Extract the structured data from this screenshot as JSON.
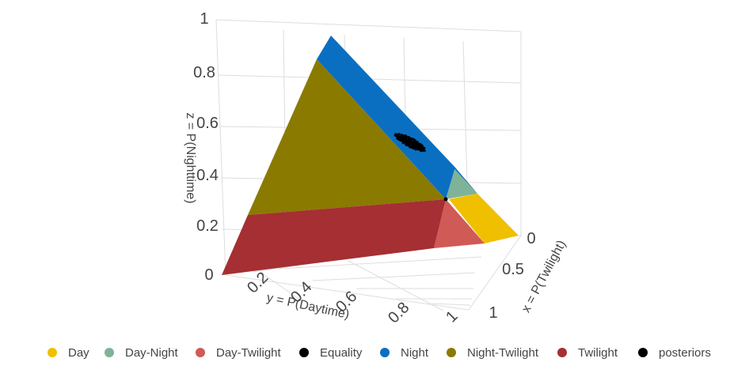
{
  "chart_data": {
    "type": "scatter",
    "projection": "3d-ternary-simplex",
    "axes": {
      "x": {
        "label": "x = P(Twilight)",
        "ticks": [
          "0",
          "0.5",
          "1"
        ],
        "range": [
          0,
          1
        ]
      },
      "y": {
        "label": "y = P(Daytime)",
        "ticks": [
          "0.2",
          "0.4",
          "0.6",
          "0.8",
          "1"
        ],
        "range": [
          0,
          1
        ]
      },
      "z": {
        "label": "z = P(Nighttime)",
        "ticks": [
          "0",
          "0.2",
          "0.4",
          "0.6",
          "0.8",
          "1"
        ],
        "range": [
          0,
          1
        ]
      }
    },
    "grid": true,
    "legend_position": "bottom",
    "series": [
      {
        "name": "Day",
        "color": "#f0c000"
      },
      {
        "name": "Day-Night",
        "color": "#7fb399"
      },
      {
        "name": "Day-Twilight",
        "color": "#d05a55"
      },
      {
        "name": "Equality",
        "color": "#000000"
      },
      {
        "name": "Night",
        "color": "#0b6fc1"
      },
      {
        "name": "Night-Twilight",
        "color": "#8a7a00"
      },
      {
        "name": "Twilight",
        "color": "#a52f33"
      },
      {
        "name": "posteriors",
        "color": "#000000"
      }
    ],
    "regions": {
      "Equality": [
        [
          0.333,
          0.333,
          0.333
        ]
      ],
      "posteriors_center": [
        0.05,
        0.24,
        0.71
      ]
    }
  }
}
